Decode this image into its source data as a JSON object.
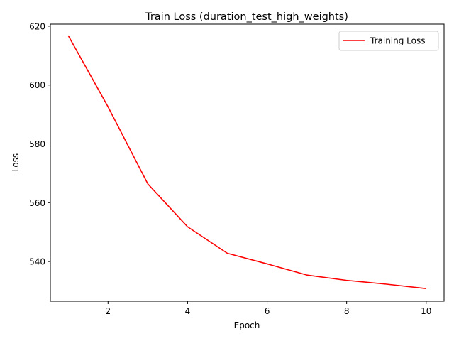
{
  "chart_data": {
    "type": "line",
    "title": "Train Loss (duration_test_high_weights)",
    "xlabel": "Epoch",
    "ylabel": "Loss",
    "xlim": [
      0.55,
      10.45
    ],
    "ylim": [
      526.5,
      620.7
    ],
    "xticks": [
      2,
      4,
      6,
      8,
      10
    ],
    "yticks": [
      540,
      560,
      580,
      600,
      620
    ],
    "grid": false,
    "legend_position": "top-right",
    "series": [
      {
        "name": "Training Loss",
        "color": "#ff0000",
        "x": [
          1,
          2,
          3,
          4,
          5,
          6,
          7,
          8,
          9,
          10
        ],
        "y": [
          616.8,
          592.6,
          566.4,
          551.8,
          542.8,
          539.2,
          535.4,
          533.6,
          532.3,
          530.8
        ]
      }
    ]
  }
}
